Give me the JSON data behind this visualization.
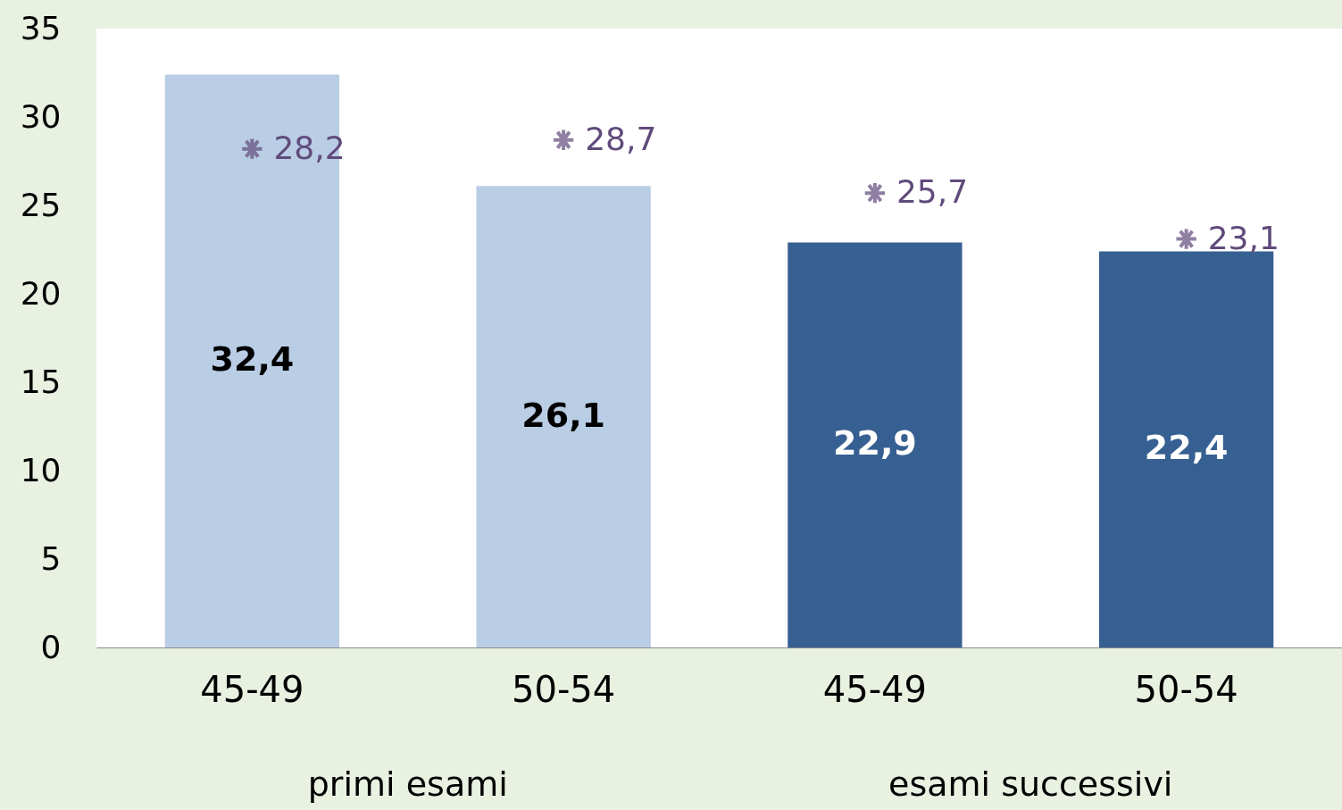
{
  "chart_data": {
    "type": "bar",
    "categories": [
      "45-49",
      "50-54",
      "45-49",
      "50-54"
    ],
    "series": [
      {
        "type": "bar",
        "colors": [
          "#b9cde5",
          "#b9cde5",
          "#376092",
          "#376092"
        ],
        "values": [
          32.4,
          26.1,
          22.9,
          22.4
        ],
        "value_labels": [
          "32,4",
          "26,1",
          "22,9",
          "22,4"
        ]
      },
      {
        "type": "scatter",
        "color": "#604a7b",
        "values": [
          28.2,
          28.7,
          25.7,
          23.1
        ],
        "value_labels": [
          "28,2",
          "28,7",
          "25,7",
          "23,1"
        ]
      }
    ],
    "marker": "cross",
    "ylim": [
      0,
      35
    ],
    "yticks": [
      0,
      5,
      10,
      15,
      20,
      25,
      30,
      35
    ],
    "grid": false,
    "annotations": [
      "primi esami",
      "esami successivi"
    ]
  }
}
